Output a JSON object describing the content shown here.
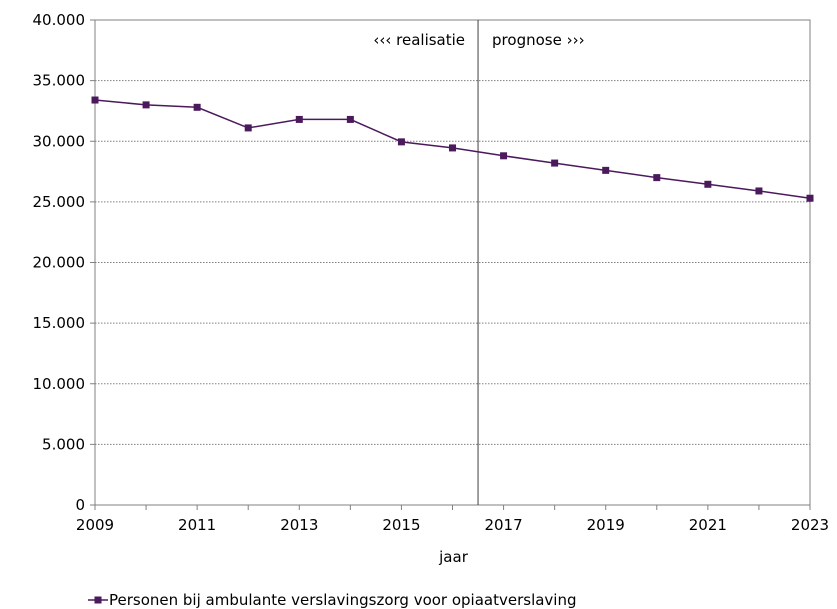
{
  "chart_data": {
    "type": "line",
    "xlabel": "jaar",
    "ylabel": "",
    "xlim": [
      2009,
      2023
    ],
    "ylim": [
      0,
      40000
    ],
    "x_ticks": [
      "2009",
      "2011",
      "2013",
      "2015",
      "2017",
      "2019",
      "2021",
      "2023"
    ],
    "y_ticks": [
      "0",
      "5.000",
      "10.000",
      "15.000",
      "20.000",
      "25.000",
      "30.000",
      "35.000",
      "40.000"
    ],
    "grid": "horizontal",
    "legend_position": "bottom",
    "annotations": {
      "divider_year": 2016.5,
      "left_label": "‹‹‹  realisatie",
      "right_label": "prognose ›››"
    },
    "series": [
      {
        "name": "Personen bij ambulante verslavingszorg voor opiaatverslaving",
        "color": "#4b1a5c",
        "x": [
          2009,
          2010,
          2011,
          2012,
          2013,
          2014,
          2015,
          2016,
          2017,
          2018,
          2019,
          2020,
          2021,
          2022,
          2023
        ],
        "values": [
          33400,
          33000,
          32800,
          31100,
          31800,
          31800,
          29950,
          29450,
          28800,
          28200,
          27600,
          27000,
          26450,
          25900,
          25300
        ]
      }
    ]
  }
}
